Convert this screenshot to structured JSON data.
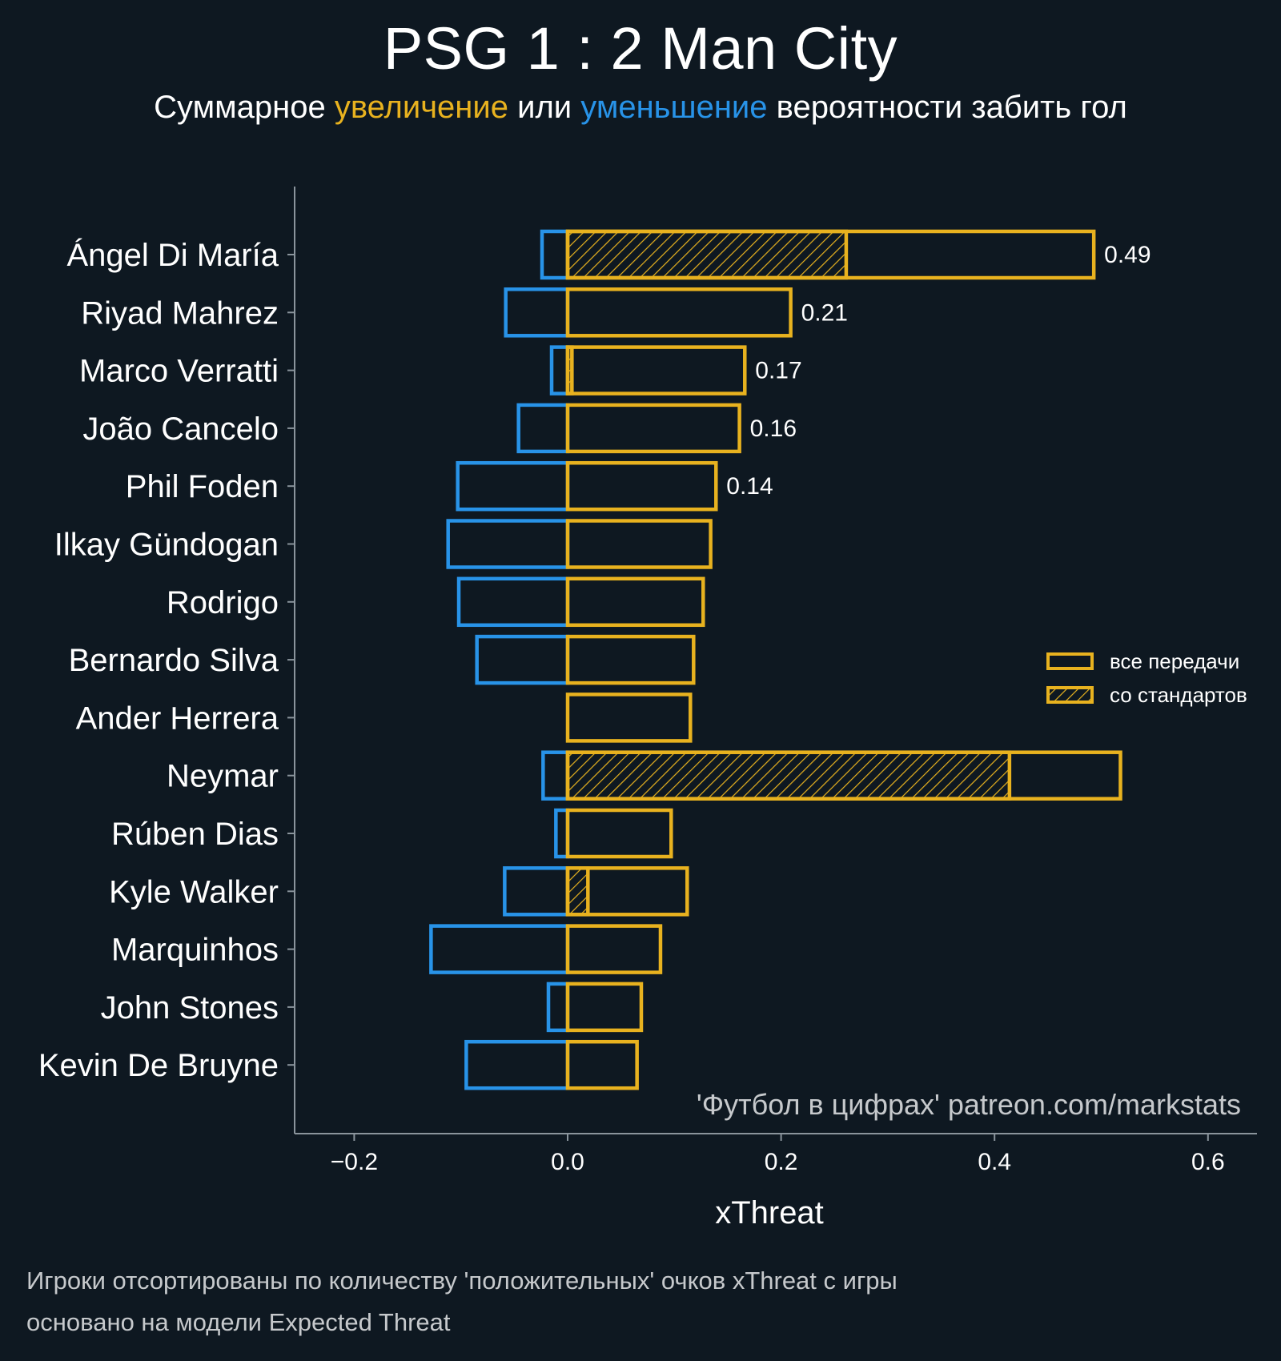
{
  "title": "PSG 1 : 2 Man City",
  "subtitle": {
    "prefix": "Суммарное",
    "up_word": "увеличение",
    "middle": "или",
    "down_word": "уменьшение",
    "suffix": "вероятности забить гол"
  },
  "colors": {
    "background": "#0e1821",
    "positive": "#e8b21f",
    "negative": "#2893e8",
    "axis": "#8a949c",
    "text": "#ffffff"
  },
  "watermark": "'Футбол в цифрах' patreon.com/markstats",
  "footnotes": [
    "Игроки отсортированы по количеству 'положительных' очков xThreat с игры",
    "основано на модели Expected Threat"
  ],
  "chart_data": {
    "type": "bar",
    "orientation": "horizontal",
    "xlabel": "xThreat",
    "xlim": [
      -0.25,
      0.65
    ],
    "xticks": [
      "−0.2",
      "0.0",
      "0.2",
      "0.4",
      "0.6"
    ],
    "categories": [
      "Ángel Di María",
      "Riyad Mahrez",
      "Marco Verratti",
      "João Cancelo",
      "Phil Foden",
      "Ilkay Gündogan",
      "Rodrigo",
      "Bernardo Silva",
      "Ander Herrera",
      "Neymar",
      "Rúben Dias",
      "Kyle Walker",
      "Marquinhos",
      "John Stones",
      "Kevin De Bruyne"
    ],
    "series": [
      {
        "name": "все передачи",
        "values": [
          0.493,
          0.209,
          0.166,
          0.161,
          0.139,
          0.134,
          0.127,
          0.118,
          0.115,
          0.518,
          0.097,
          0.112,
          0.087,
          0.069,
          0.065
        ]
      },
      {
        "name": "со стандартов",
        "values": [
          0.261,
          0,
          0.004,
          0,
          0,
          0,
          0,
          0,
          0,
          0.414,
          0,
          0.019,
          0,
          0,
          0
        ]
      },
      {
        "values": [
          -0.024,
          -0.058,
          -0.015,
          -0.046,
          -0.103,
          -0.112,
          -0.102,
          -0.085,
          0,
          -0.023,
          -0.011,
          -0.059,
          -0.128,
          -0.018,
          -0.095
        ]
      }
    ],
    "data_labels": [
      "0.49",
      "0.21",
      "0.17",
      "0.16",
      "0.14",
      "",
      "",
      "",
      "",
      "",
      "",
      "",
      "",
      "",
      ""
    ],
    "legend_position": "right",
    "grid": false
  }
}
